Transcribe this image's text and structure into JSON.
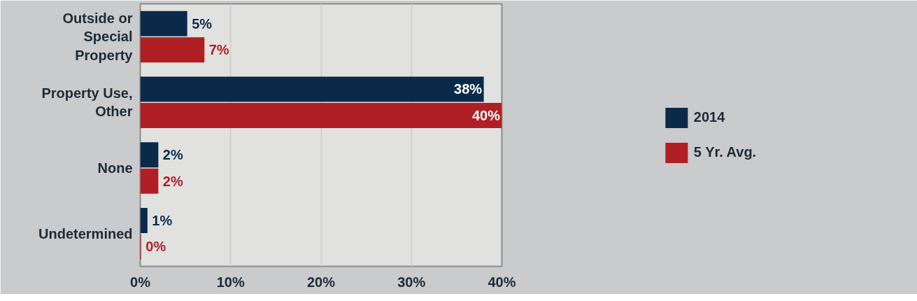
{
  "chart_data": {
    "type": "bar",
    "orientation": "horizontal",
    "categories": [
      "Outside or Special Property",
      "Property Use, Other",
      "None",
      "Undetermined"
    ],
    "series": [
      {
        "name": "2014",
        "color": "#0b2a4a",
        "values": [
          5.2,
          38,
          2,
          0.8
        ],
        "value_labels": [
          "5%",
          "38%",
          "2%",
          "1%"
        ]
      },
      {
        "name": "5 Yr. Avg.",
        "color": "#b01f24",
        "values": [
          7.1,
          40,
          2,
          0.1
        ],
        "value_labels": [
          "7%",
          "40%",
          "2%",
          "0%"
        ]
      }
    ],
    "xlim": [
      0,
      40
    ],
    "xticks": [
      {
        "value": 0,
        "label": "0%"
      },
      {
        "value": 10,
        "label": "10%"
      },
      {
        "value": 20,
        "label": "20%"
      },
      {
        "value": 30,
        "label": "30%"
      },
      {
        "value": 40,
        "label": "40%"
      }
    ],
    "grid": "x",
    "legend": "right"
  }
}
